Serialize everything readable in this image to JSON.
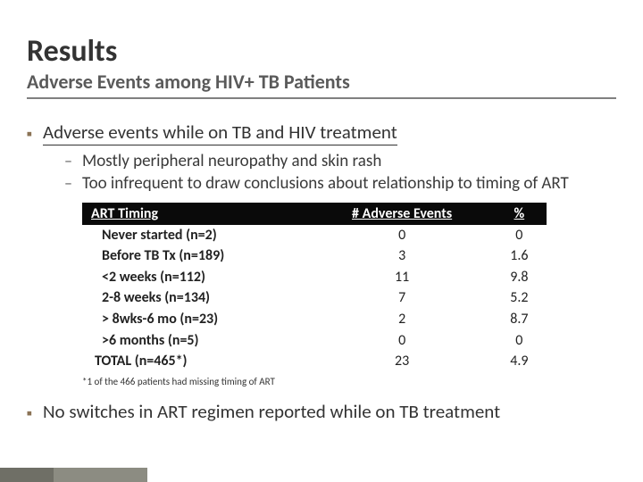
{
  "title": "Results",
  "subtitle": "Adverse Events among HIV+ TB Patients",
  "bullet1": "Adverse events while on TB and HIV treatment",
  "sub1": "Mostly peripheral neuropathy and skin rash",
  "sub2": "Too infrequent to draw conclusions about relationship to timing of ART",
  "bullet2": "No switches in ART regimen reported while on TB treatment",
  "table": {
    "headers": {
      "c1": "ART Timing",
      "c2": "# Adverse Events",
      "c3": "%"
    },
    "rows": [
      {
        "label": "Never started (n=2)",
        "events": "0",
        "pct": "0"
      },
      {
        "label": "Before TB Tx (n=189)",
        "events": "3",
        "pct": "1.6"
      },
      {
        "label": "<2 weeks (n=112)",
        "events": "11",
        "pct": "9.8"
      },
      {
        "label": "2-8 weeks (n=134)",
        "events": "7",
        "pct": "5.2"
      },
      {
        "label": "> 8wks-6 mo (n=23)",
        "events": "2",
        "pct": "8.7"
      },
      {
        "label": ">6 months (n=5)",
        "events": "0",
        "pct": "0"
      },
      {
        "label": "TOTAL (n=465*)",
        "events": "23",
        "pct": "4.9"
      }
    ]
  },
  "footnote": "*1 of the 466 patients had missing timing of ART",
  "colors": {
    "accent": "#8b7355",
    "header_bg": "#0a0a0a",
    "header_fg": "#ffffff",
    "rule": "#808080"
  }
}
